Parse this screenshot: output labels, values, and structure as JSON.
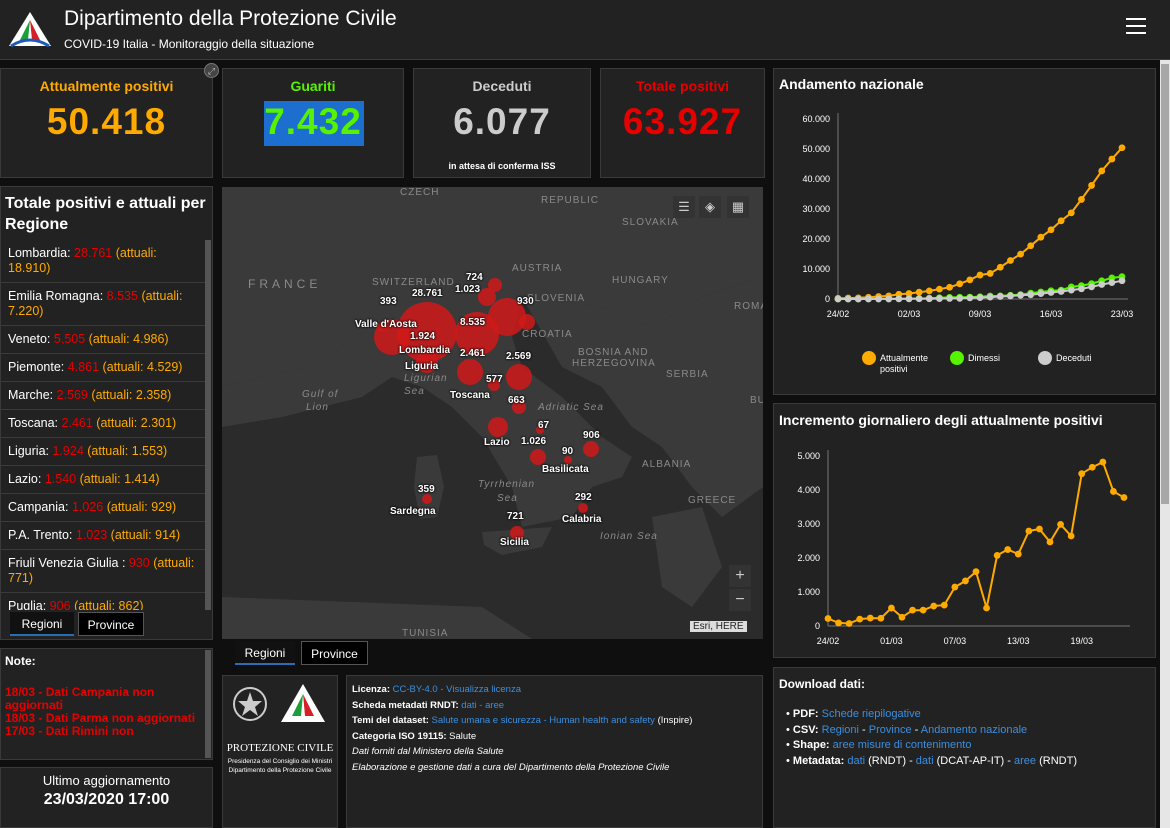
{
  "header": {
    "title": "Dipartimento della Protezione Civile",
    "subtitle": "COVID-19 Italia - Monitoraggio della situazione"
  },
  "kpis": {
    "attualmente_positivi": {
      "label": "Attualmente positivi",
      "value": "50.418",
      "color": "#ffaa00"
    },
    "guariti": {
      "label": "Guariti",
      "value": "7.432",
      "color": "#56f200"
    },
    "deceduti": {
      "label": "Deceduti",
      "value": "6.077",
      "sub": "in attesa di conferma ISS",
      "color": "#cccccc"
    },
    "totale_positivi": {
      "label": "Totale positivi",
      "value": "63.927",
      "color": "#e60000"
    }
  },
  "region_list": {
    "title": "Totale positivi e attuali per Regione",
    "attuali_prefix": "(attuali:",
    "items": [
      {
        "name": "Lombardia:",
        "total": "28.761",
        "current": "18.910"
      },
      {
        "name": "Emilia Romagna:",
        "total": "8.535",
        "current": "7.220"
      },
      {
        "name": "Veneto:",
        "total": "5.505",
        "current": "4.986"
      },
      {
        "name": "Piemonte:",
        "total": "4.861",
        "current": "4.529"
      },
      {
        "name": "Marche:",
        "total": "2.569",
        "current": "2.358"
      },
      {
        "name": "Toscana:",
        "total": "2.461",
        "current": "2.301"
      },
      {
        "name": "Liguria:",
        "total": "1.924",
        "current": "1.553"
      },
      {
        "name": "Lazio:",
        "total": "1.540",
        "current": "1.414"
      },
      {
        "name": "Campania:",
        "total": "1.026",
        "current": "929"
      },
      {
        "name": "P.A. Trento:",
        "total": "1.023",
        "current": "914"
      },
      {
        "name": "Friuli Venezia Giulia :",
        "total": "930",
        "current": "771"
      },
      {
        "name": "Puglia:",
        "total": "906",
        "current": "862"
      }
    ]
  },
  "tabs": {
    "regioni": "Regioni",
    "province": "Province"
  },
  "notes": {
    "title": "Note:",
    "lines": [
      "18/03 - Dati Campania non aggiornati",
      "18/03 - Dati Parma non aggiornati",
      "17/03 - Dati Rimini non"
    ]
  },
  "update": {
    "label": "Ultimo aggiornamento",
    "value": "23/03/2020 17:00"
  },
  "map": {
    "labels": {
      "france": "FRANCE",
      "switzerland": "SWITZERLAND",
      "austria": "AUSTRIA",
      "hungary": "HUNGARY",
      "slovakia": "SLOVAKIA",
      "czech": "CZECH",
      "republic": "REPUBLIC",
      "slovenia": "SLOVENIA",
      "croatia": "CROATIA",
      "bosnia": "BOSNIA AND",
      "herzegovina": "HERZEGOVINA",
      "serbia": "SERBIA",
      "albania": "ALBANIA",
      "greece": "GREECE",
      "tunisia": "TUNISIA",
      "roma": "ROMA",
      "bu": "BU",
      "gulf": "Gulf of",
      "lion": "Lion",
      "ligurian": "Ligurian",
      "sea": "Sea",
      "adriatic": "Adriatic Sea",
      "tyrrhenian": "Tyrrhenian",
      "sea2": "Sea",
      "ionian": "Ionian Sea"
    },
    "numbers": {
      "n724": "724",
      "n1023": "1.023",
      "n28761": "28.761",
      "n393": "393",
      "n930": "930",
      "n8535": "8.535",
      "n1924": "1.924",
      "n2461": "2.461",
      "n2569": "2.569",
      "n577": "577",
      "n663": "663",
      "n67": "67",
      "n1026": "1.026",
      "n906": "906",
      "n90": "90",
      "n359": "359",
      "n292": "292",
      "n721": "721"
    },
    "regions": {
      "valle": "Valle d'Aosta",
      "lombardia": "Lombardia",
      "liguria": "Liguria",
      "toscana": "Toscana",
      "lazio": "Lazio",
      "basilicata": "Basilicata",
      "sardegna": "Sardegna",
      "calabria": "Calabria",
      "sicilia": "Sicilia"
    },
    "attribution": "Esri, HERE",
    "zoom_in": "+",
    "zoom_out": "−"
  },
  "info": {
    "licenza_label": "Licenza:",
    "licenza_link1": "CC-BY-4.0",
    "licenza_sep": " - ",
    "licenza_link2": "Visualizza licenza",
    "scheda_label": "Scheda metadati RNDT:",
    "scheda_link1": "dati",
    "scheda_sep": " - ",
    "scheda_link2": "aree",
    "temi_label": "Temi del dataset:",
    "temi_link": "Salute umana e sicurezza - Human health and safety",
    "temi_suffix": " (Inspire)",
    "iso_label": "Categoria ISO 19115:",
    "iso_value": " Salute",
    "line5": "Dati forniti dal Ministero della Salute",
    "line6": "Elaborazione e gestione dati a cura del Dipartimento della Protezione Civile",
    "logo_title": "PROTEZIONE CIVILE",
    "logo_sub1": "Presidenza del Consiglio dei Ministri",
    "logo_sub2": "Dipartimento della Protezione Civile"
  },
  "download": {
    "title": "Download dati:",
    "pdf_label": "PDF:",
    "pdf_link": "Schede riepilogative",
    "csv_label": "CSV:",
    "csv_link1": "Regioni",
    "csv_link2": "Province",
    "csv_link3": "Andamento nazionale",
    "shape_label": "Shape:",
    "shape_link": "aree misure di contenimento",
    "meta_label": "Metadata:",
    "meta_link1": "dati",
    "meta_t1": " (RNDT) - ",
    "meta_link2": "dati",
    "meta_t2": " (DCAT-AP-IT) - ",
    "meta_link3": "aree",
    "meta_t3": " (RNDT)",
    "sep": " - "
  },
  "chart_data": [
    {
      "type": "line",
      "title": "Andamento nazionale",
      "x": [
        "24/02",
        "25/02",
        "26/02",
        "27/02",
        "28/02",
        "29/02",
        "01/03",
        "02/03",
        "03/03",
        "04/03",
        "05/03",
        "06/03",
        "07/03",
        "08/03",
        "09/03",
        "10/03",
        "11/03",
        "12/03",
        "13/03",
        "14/03",
        "15/03",
        "16/03",
        "17/03",
        "18/03",
        "19/03",
        "20/03",
        "21/03",
        "22/03",
        "23/03"
      ],
      "xticks": [
        "24/02",
        "02/03",
        "09/03",
        "16/03",
        "23/03"
      ],
      "yticks": [
        "0",
        "10.000",
        "20.000",
        "30.000",
        "40.000",
        "50.000",
        "60.000"
      ],
      "ylim": [
        0,
        60000
      ],
      "series": [
        {
          "name": "Attualmente positivi",
          "color": "#ffaa00",
          "values": [
            221,
            311,
            385,
            588,
            821,
            1049,
            1577,
            1835,
            2263,
            2706,
            3296,
            3916,
            5061,
            6387,
            7985,
            8514,
            10590,
            12839,
            14955,
            17750,
            20603,
            23073,
            26062,
            28710,
            33190,
            37860,
            42681,
            46638,
            50418
          ]
        },
        {
          "name": "Dimessi",
          "color": "#56f200",
          "values": [
            1,
            1,
            3,
            45,
            46,
            50,
            83,
            149,
            160,
            276,
            414,
            523,
            589,
            622,
            724,
            1004,
            1045,
            1258,
            1439,
            1966,
            2335,
            2749,
            2941,
            4025,
            4440,
            5129,
            6072,
            7024,
            7432
          ]
        },
        {
          "name": "Deceduti",
          "color": "#cccccc",
          "values": [
            7,
            10,
            12,
            17,
            21,
            29,
            34,
            52,
            79,
            107,
            148,
            197,
            233,
            366,
            463,
            631,
            827,
            1016,
            1266,
            1441,
            1809,
            2158,
            2503,
            2978,
            3405,
            4032,
            4825,
            5476,
            6077
          ]
        }
      ],
      "legend": [
        "Attualmente",
        "positivi",
        "Dimessi",
        "Deceduti"
      ]
    },
    {
      "type": "line",
      "title": "Incremento giornaliero degli attualmente positivi",
      "x": [
        "24/02",
        "25/02",
        "26/02",
        "27/02",
        "28/02",
        "29/02",
        "01/03",
        "02/03",
        "03/03",
        "04/03",
        "05/03",
        "06/03",
        "07/03",
        "08/03",
        "09/03",
        "10/03",
        "11/03",
        "12/03",
        "13/03",
        "14/03",
        "15/03",
        "16/03",
        "17/03",
        "18/03",
        "19/03",
        "20/03",
        "21/03",
        "22/03",
        "23/03"
      ],
      "xticks": [
        "24/02",
        "01/03",
        "07/03",
        "13/03",
        "19/03"
      ],
      "yticks": [
        "0",
        "1.000",
        "2.000",
        "3.000",
        "4.000",
        "5.000"
      ],
      "ylim": [
        0,
        5000
      ],
      "series": [
        {
          "name": "",
          "color": "#ffaa00",
          "values": [
            221,
            90,
            74,
            203,
            233,
            228,
            528,
            258,
            466,
            466,
            587,
            614,
            1145,
            1326,
            1598,
            529,
            2076,
            2249,
            2116,
            2795,
            2853,
            2470,
            2989,
            2648,
            4480,
            4670,
            4821,
            3957,
            3780
          ]
        }
      ]
    }
  ]
}
